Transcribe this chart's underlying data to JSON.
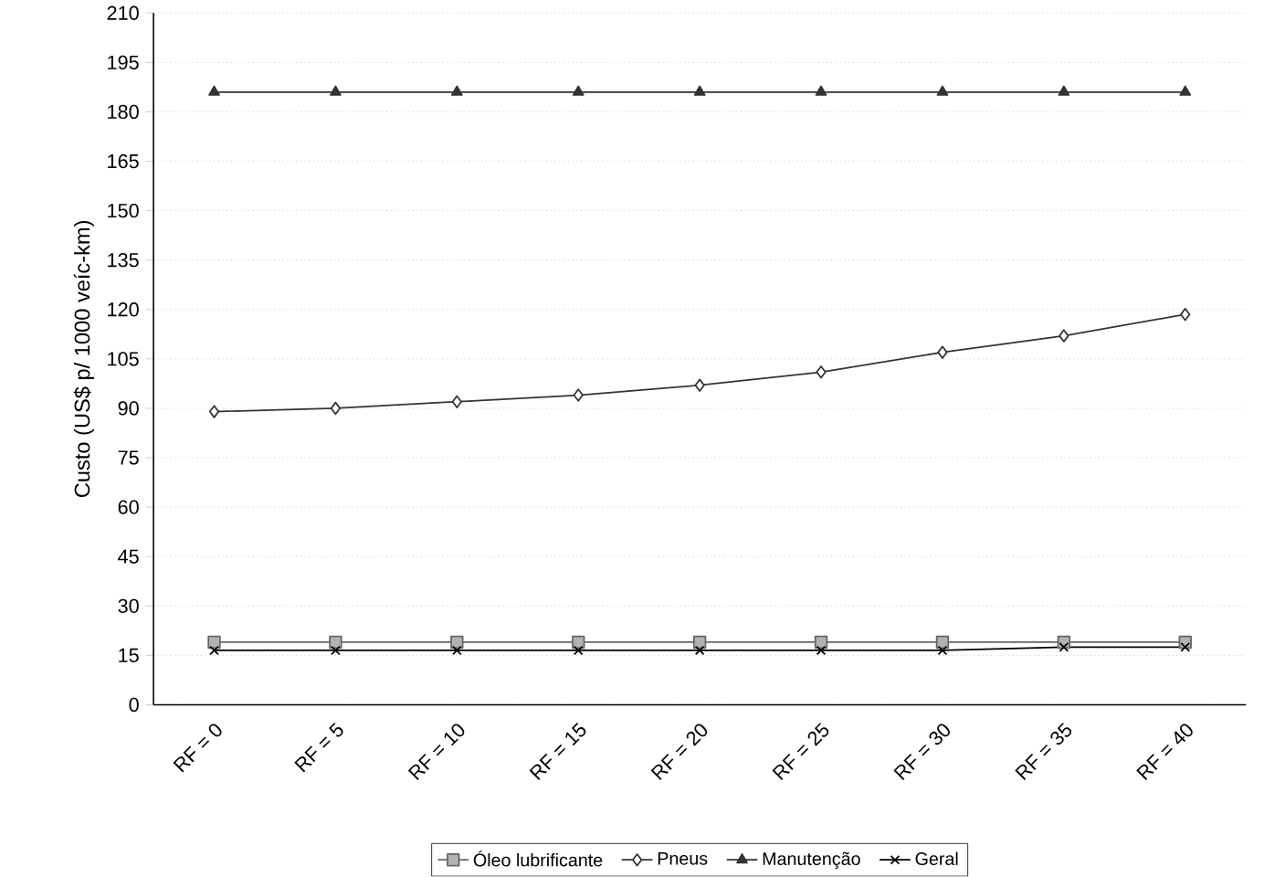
{
  "chart_data": {
    "type": "line",
    "ylabel": "Custo (US$ p/ 1000 veíc-km)",
    "categories": [
      "RF = 0",
      "RF = 5",
      "RF = 10",
      "RF = 15",
      "RF = 20",
      "RF = 25",
      "RF = 30",
      "RF = 35",
      "RF = 40"
    ],
    "series": [
      {
        "name": "Óleo lubrificante",
        "color": "#666666",
        "marker": "square",
        "values": [
          19,
          19,
          19,
          19,
          19,
          19,
          19,
          19,
          19
        ]
      },
      {
        "name": "Pneus",
        "color": "#333333",
        "marker": "diamond",
        "values": [
          89,
          90,
          92,
          94,
          97,
          101,
          107,
          112,
          118.5
        ]
      },
      {
        "name": "Manutenção",
        "color": "#333333",
        "marker": "triangle",
        "values": [
          186,
          186,
          186,
          186,
          186,
          186,
          186,
          186,
          186
        ]
      },
      {
        "name": "Geral",
        "color": "#000000",
        "marker": "cross",
        "values": [
          16.5,
          16.5,
          16.5,
          16.5,
          16.5,
          16.5,
          16.5,
          17.5,
          17.5
        ]
      }
    ],
    "ylim": [
      0,
      210
    ],
    "yticks": [
      0,
      15,
      30,
      45,
      60,
      75,
      90,
      105,
      120,
      135,
      150,
      165,
      180,
      195,
      210
    ],
    "grid": "y",
    "legend": "bottom"
  }
}
